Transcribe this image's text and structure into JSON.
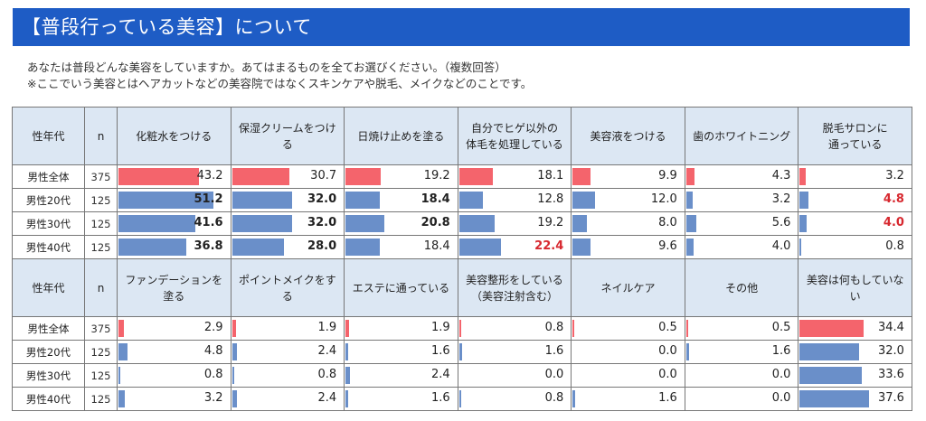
{
  "title": "【普段行っている美容】について",
  "question": {
    "line1": "あなたは普段どんな美容をしていますか。あてはまるものを全てお選びください。（複数回答）",
    "line2": "※ここでいう美容とはヘアカットなどの美容院ではなくスキンケアや脱毛、メイクなどのことです。"
  },
  "colors": {
    "header_bg": "#1e5cc5",
    "table_head": "#dce7f3",
    "bar_all": "#f4646c",
    "bar_age": "#6a8fc9",
    "highlight": "#d7282f"
  },
  "chart_data": {
    "type": "table",
    "row_header": "性年代",
    "n_header": "n",
    "rows": [
      "男性全体",
      "男性20代",
      "男性30代",
      "男性40代"
    ],
    "n": [
      375,
      125,
      125,
      125
    ],
    "tables": [
      {
        "columns": [
          "化粧水をつける",
          "保湿クリームをつける",
          "日焼け止めを塗る",
          "自分でヒゲ以外の\n体毛を処理している",
          "美容液をつける",
          "歯のホワイトニング",
          "脱毛サロンに\n通っている"
        ],
        "values": [
          [
            43.2,
            30.7,
            19.2,
            18.1,
            9.9,
            4.3,
            3.2
          ],
          [
            51.2,
            32.0,
            18.4,
            12.8,
            12.0,
            3.2,
            4.8
          ],
          [
            41.6,
            32.0,
            20.8,
            19.2,
            8.0,
            5.6,
            4.0
          ],
          [
            36.8,
            28.0,
            18.4,
            22.4,
            9.6,
            4.0,
            0.8
          ]
        ],
        "display": [
          [
            "43.2",
            "30.7",
            "19.2",
            "18.1",
            "9.9",
            "4.3",
            "3.2"
          ],
          [
            "51.2",
            "32.0",
            "18.4",
            "12.8",
            "12.0",
            "3.2",
            "4.8"
          ],
          [
            "41.6",
            "32.0",
            "20.8",
            "19.2",
            "8.0",
            "5.6",
            "4.0"
          ],
          [
            "36.8",
            "28.0",
            "18.4",
            "22.4",
            "9.6",
            "4.0",
            "0.8"
          ]
        ],
        "style": [
          [
            "n",
            "n",
            "n",
            "n",
            "n",
            "n",
            "n"
          ],
          [
            "b",
            "b",
            "b",
            "n",
            "n",
            "n",
            "h"
          ],
          [
            "b",
            "b",
            "b",
            "n",
            "n",
            "n",
            "h"
          ],
          [
            "b",
            "b",
            "n",
            "h",
            "n",
            "n",
            "n"
          ]
        ]
      },
      {
        "columns": [
          "ファンデーションを塗る",
          "ポイントメイクをする",
          "エステに通っている",
          "美容整形をしている\n（美容注射含む）",
          "ネイルケア",
          "その他",
          "美容は何もしていない"
        ],
        "values": [
          [
            2.9,
            1.9,
            1.9,
            0.8,
            0.5,
            0.5,
            34.4
          ],
          [
            4.8,
            2.4,
            1.6,
            1.6,
            0.0,
            1.6,
            32.0
          ],
          [
            0.8,
            0.8,
            2.4,
            0.0,
            0.0,
            0.0,
            33.6
          ],
          [
            3.2,
            2.4,
            1.6,
            0.8,
            1.6,
            0.0,
            37.6
          ]
        ],
        "display": [
          [
            "2.9",
            "1.9",
            "1.9",
            "0.8",
            "0.5",
            "0.5",
            "34.4"
          ],
          [
            "4.8",
            "2.4",
            "1.6",
            "1.6",
            "0.0",
            "1.6",
            "32.0"
          ],
          [
            "0.8",
            "0.8",
            "2.4",
            "0.0",
            "0.0",
            "0.0",
            "33.6"
          ],
          [
            "3.2",
            "2.4",
            "1.6",
            "0.8",
            "1.6",
            "0.0",
            "37.6"
          ]
        ],
        "style": [
          [
            "n",
            "n",
            "n",
            "n",
            "n",
            "n",
            "n"
          ],
          [
            "n",
            "n",
            "n",
            "n",
            "n",
            "n",
            "n"
          ],
          [
            "n",
            "n",
            "n",
            "n",
            "n",
            "n",
            "n"
          ],
          [
            "n",
            "n",
            "n",
            "n",
            "n",
            "n",
            "n"
          ]
        ]
      }
    ],
    "bar_scale_max": 60
  }
}
